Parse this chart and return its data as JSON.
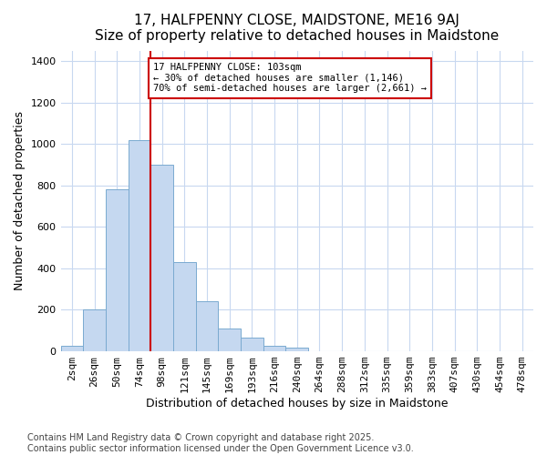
{
  "title": "17, HALFPENNY CLOSE, MAIDSTONE, ME16 9AJ",
  "subtitle": "Size of property relative to detached houses in Maidstone",
  "xlabel": "Distribution of detached houses by size in Maidstone",
  "ylabel": "Number of detached properties",
  "categories": [
    "2sqm",
    "26sqm",
    "50sqm",
    "74sqm",
    "98sqm",
    "121sqm",
    "145sqm",
    "169sqm",
    "193sqm",
    "216sqm",
    "240sqm",
    "264sqm",
    "288sqm",
    "312sqm",
    "335sqm",
    "359sqm",
    "383sqm",
    "407sqm",
    "430sqm",
    "454sqm",
    "478sqm"
  ],
  "values": [
    25,
    200,
    780,
    1020,
    900,
    430,
    240,
    110,
    65,
    25,
    20,
    0,
    0,
    0,
    0,
    0,
    0,
    0,
    0,
    0,
    0
  ],
  "bar_color": "#c5d8f0",
  "bar_edge_color": "#7aaad0",
  "background_color": "#ffffff",
  "grid_color": "#c8d8f0",
  "vline_color": "#cc0000",
  "vline_bin_index": 3,
  "annotation_text": "17 HALFPENNY CLOSE: 103sqm\n← 30% of detached houses are smaller (1,146)\n70% of semi-detached houses are larger (2,661) →",
  "ylim": [
    0,
    1450
  ],
  "yticks": [
    0,
    200,
    400,
    600,
    800,
    1000,
    1200,
    1400
  ],
  "footer": "Contains HM Land Registry data © Crown copyright and database right 2025.\nContains public sector information licensed under the Open Government Licence v3.0."
}
